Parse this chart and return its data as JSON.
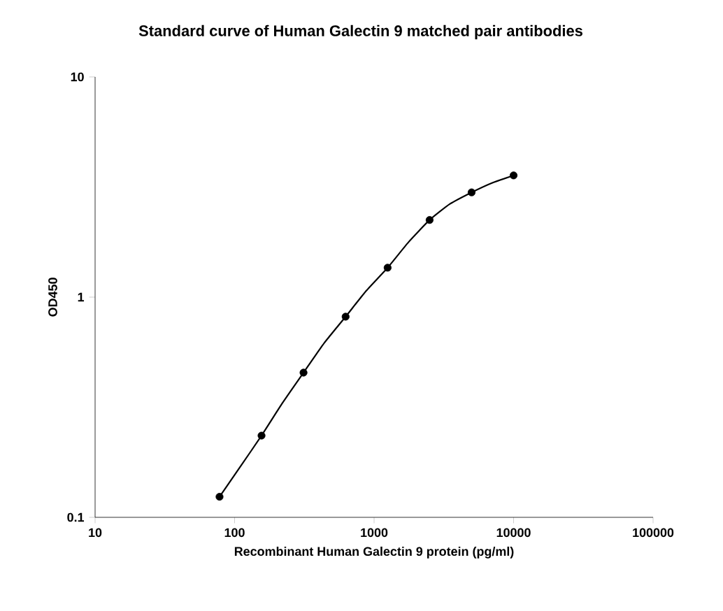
{
  "chart_data": {
    "type": "scatter",
    "title": "Standard curve of Human Galectin 9 matched pair antibodies",
    "xlabel": "Recombinant Human Galectin 9 protein (pg/ml)",
    "ylabel": "OD450",
    "log": "xy",
    "grid": false,
    "xlim": [
      10,
      100000
    ],
    "ylim": [
      0.1,
      10
    ],
    "xticks": [
      10,
      100,
      1000,
      10000,
      100000
    ],
    "yticks": [
      0.1,
      1,
      10
    ],
    "series": [
      {
        "marker": "circle",
        "color": "#000000",
        "x": [
          78,
          156,
          312,
          625,
          1250,
          2500,
          5000,
          10000
        ],
        "values": [
          0.124,
          0.235,
          0.454,
          0.815,
          1.36,
          2.24,
          2.99,
          3.57
        ]
      },
      {
        "type": "line",
        "line_style": "solid",
        "marker": "none",
        "color": "#000000",
        "x": [
          78,
          110,
          156,
          220,
          312,
          440,
          625,
          880,
          1250,
          1770,
          2500,
          3500,
          5000,
          7000,
          10000
        ],
        "values": [
          0.124,
          0.17,
          0.235,
          0.33,
          0.454,
          0.62,
          0.815,
          1.07,
          1.36,
          1.78,
          2.24,
          2.65,
          2.99,
          3.3,
          3.57
        ]
      }
    ]
  }
}
